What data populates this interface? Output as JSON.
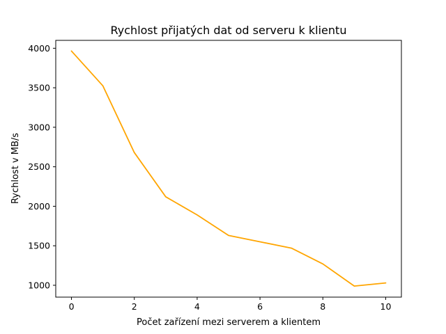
{
  "chart_data": {
    "type": "line",
    "title": "Rychlost přijatých dat od serveru k klientu",
    "xlabel": "Počet zařízení mezi serverem a klientem",
    "ylabel": "Rychlost v MB/s",
    "xlim": [
      -0.5,
      10.5
    ],
    "ylim": [
      850,
      4100
    ],
    "xticks": [
      0,
      2,
      4,
      6,
      8,
      10
    ],
    "yticks": [
      1000,
      1500,
      2000,
      2500,
      3000,
      3500,
      4000
    ],
    "grid": false,
    "series": [
      {
        "color": "#FFA500",
        "x": [
          0,
          1,
          2,
          3,
          4,
          5,
          6,
          7,
          8,
          9,
          10
        ],
        "y": [
          3965,
          3525,
          2680,
          2120,
          1890,
          1630,
          1550,
          1470,
          1270,
          990,
          1030
        ]
      }
    ]
  }
}
